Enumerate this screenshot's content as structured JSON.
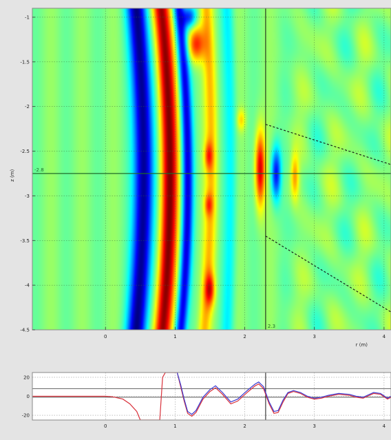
{
  "chart_data": [
    {
      "type": "heatmap",
      "title": "",
      "xlabel": "r (m)",
      "ylabel": "z (m)",
      "xlim": [
        -1.05,
        4.1
      ],
      "ylim": [
        -0.9,
        -4.5
      ],
      "x_ticks": [
        0,
        1,
        2,
        3,
        4
      ],
      "x_tick_labels": [
        "0",
        "1",
        "2",
        "3",
        "4"
      ],
      "y_ticks": [
        -1,
        -1.5,
        -2,
        -2.5,
        -3,
        -3.5,
        -4,
        -4.5
      ],
      "y_tick_labels": [
        "-1",
        "-1.5",
        "-2",
        "-2.5",
        "-3",
        "-3.5",
        "-4",
        "-4.5"
      ],
      "grid": true,
      "colormap": "jet",
      "cursor": {
        "r": 2.3,
        "z": -2.75,
        "r_label": "2.3",
        "z_label": "-2.8"
      },
      "dashed_lines": [
        {
          "points": [
            [
              2.3,
              -2.2
            ],
            [
              4.1,
              -2.65
            ]
          ]
        },
        {
          "points": [
            [
              2.3,
              -3.45
            ],
            [
              4.1,
              -4.3
            ]
          ]
        }
      ],
      "bands": [
        {
          "r_top": 0.45,
          "r_mid": 0.55,
          "r_bot": 0.45,
          "half_width": 0.14,
          "amp": -1.0
        },
        {
          "r_top": 0.8,
          "r_mid": 0.92,
          "r_bot": 0.82,
          "half_width": 0.12,
          "amp": 1.0
        },
        {
          "r_top": 1.05,
          "r_mid": 1.18,
          "r_bot": 1.08,
          "half_width": 0.08,
          "amp": -0.8
        },
        {
          "r_top": 1.45,
          "r_mid": 1.52,
          "r_bot": 1.42,
          "half_width": 0.09,
          "amp": 0.35
        },
        {
          "r_top": 1.75,
          "r_mid": 1.8,
          "r_bot": 1.75,
          "half_width": 0.09,
          "amp": -0.25
        }
      ],
      "blobs": [
        {
          "r": 2.22,
          "z": -2.7,
          "rr": 0.07,
          "rz": 0.42,
          "amp": 0.85
        },
        {
          "r": 2.45,
          "z": -2.75,
          "rr": 0.07,
          "rz": 0.3,
          "amp": -0.75
        },
        {
          "r": 2.72,
          "z": -2.78,
          "rr": 0.06,
          "rz": 0.25,
          "amp": 0.45
        },
        {
          "r": 1.95,
          "z": -2.15,
          "rr": 0.06,
          "rz": 0.12,
          "amp": 0.3
        },
        {
          "r": 1.5,
          "z": -4.05,
          "rr": 0.07,
          "rz": 0.18,
          "amp": 0.55
        },
        {
          "r": 1.48,
          "z": -2.55,
          "rr": 0.06,
          "rz": 0.15,
          "amp": 0.4
        },
        {
          "r": 1.48,
          "z": -3.1,
          "rr": 0.06,
          "rz": 0.12,
          "amp": 0.35
        },
        {
          "r": 1.3,
          "z": -1.3,
          "rr": 0.12,
          "rz": 0.2,
          "amp": 0.7
        },
        {
          "r": 1.2,
          "z": -1.0,
          "rr": 0.1,
          "rz": 0.12,
          "amp": -0.6
        }
      ]
    },
    {
      "type": "line",
      "title": "",
      "xlim": [
        -1.05,
        4.1
      ],
      "ylim": [
        -25,
        25
      ],
      "y_ticks": [
        -20,
        0,
        20
      ],
      "y_tick_labels": [
        "-20",
        "0",
        "20"
      ],
      "x_ticks": [
        0,
        1,
        2,
        3,
        4
      ],
      "x_tick_labels": [
        "0",
        "1",
        "2",
        "3",
        "4"
      ],
      "grid": true,
      "reference_lines": [
        8,
        -1
      ],
      "cursor_r": 2.3,
      "series": [
        {
          "color": "#d9303a",
          "points": [
            [
              -1.05,
              0
            ],
            [
              -0.5,
              0
            ],
            [
              0.0,
              0
            ],
            [
              0.1,
              -0.5
            ],
            [
              0.25,
              -3
            ],
            [
              0.35,
              -8
            ],
            [
              0.45,
              -16
            ],
            [
              0.5,
              -25
            ],
            [
              0.78,
              -25
            ],
            [
              0.82,
              20
            ],
            [
              0.86,
              25
            ],
            [
              1.03,
              25
            ],
            [
              1.08,
              10
            ],
            [
              1.13,
              -5
            ],
            [
              1.18,
              -18
            ],
            [
              1.24,
              -21
            ],
            [
              1.3,
              -17
            ],
            [
              1.4,
              -3
            ],
            [
              1.5,
              5
            ],
            [
              1.58,
              9
            ],
            [
              1.68,
              2
            ],
            [
              1.8,
              -8
            ],
            [
              1.9,
              -5
            ],
            [
              2.05,
              5
            ],
            [
              2.15,
              11
            ],
            [
              2.2,
              13
            ],
            [
              2.27,
              8
            ],
            [
              2.35,
              -8
            ],
            [
              2.42,
              -18
            ],
            [
              2.48,
              -17
            ],
            [
              2.55,
              -6
            ],
            [
              2.62,
              3
            ],
            [
              2.7,
              5
            ],
            [
              2.8,
              3
            ],
            [
              2.9,
              -1
            ],
            [
              3.0,
              -3
            ],
            [
              3.1,
              -2
            ],
            [
              3.2,
              0
            ],
            [
              3.35,
              2
            ],
            [
              3.5,
              1
            ],
            [
              3.6,
              -1
            ],
            [
              3.7,
              -2
            ],
            [
              3.85,
              3
            ],
            [
              3.95,
              2
            ],
            [
              4.05,
              -3
            ],
            [
              4.1,
              -1
            ]
          ]
        },
        {
          "color": "#3a3ad0",
          "points": [
            [
              1.03,
              25
            ],
            [
              1.08,
              12
            ],
            [
              1.13,
              -3
            ],
            [
              1.18,
              -16
            ],
            [
              1.24,
              -19
            ],
            [
              1.3,
              -15
            ],
            [
              1.4,
              -1
            ],
            [
              1.5,
              7
            ],
            [
              1.58,
              11
            ],
            [
              1.68,
              4
            ],
            [
              1.8,
              -6
            ],
            [
              1.9,
              -3
            ],
            [
              2.05,
              7
            ],
            [
              2.15,
              13
            ],
            [
              2.2,
              15
            ],
            [
              2.27,
              10
            ],
            [
              2.35,
              -6
            ],
            [
              2.42,
              -16
            ],
            [
              2.48,
              -15
            ],
            [
              2.55,
              -4
            ],
            [
              2.62,
              4
            ],
            [
              2.7,
              6
            ],
            [
              2.8,
              4
            ],
            [
              2.9,
              0
            ],
            [
              3.0,
              -2
            ],
            [
              3.1,
              -1
            ],
            [
              3.2,
              1
            ],
            [
              3.35,
              3
            ],
            [
              3.5,
              2
            ],
            [
              3.6,
              0
            ],
            [
              3.7,
              -1
            ],
            [
              3.85,
              4
            ],
            [
              3.95,
              3
            ],
            [
              4.05,
              -2
            ],
            [
              4.1,
              0
            ]
          ]
        }
      ]
    }
  ]
}
